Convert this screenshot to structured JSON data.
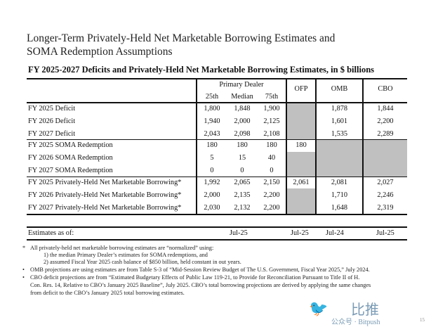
{
  "title_line1": "Longer-Term Privately-Held Net Marketable Borrowing Estimates and",
  "title_line2": "SOMA Redemption Assumptions",
  "table": {
    "title": "FY 2025-2027 Deficits and Privately-Held Net Marketable Borrowing Estimates, in $ billions",
    "group_header": "Primary Dealer",
    "columns": [
      "25th",
      "Median",
      "75th",
      "OFP",
      "OMB",
      "CBO"
    ],
    "rows": [
      {
        "label": "FY 2025 Deficit",
        "values": [
          "1,800",
          "1,848",
          "1,900",
          "",
          "1,878",
          "1,844"
        ]
      },
      {
        "label": "FY 2026 Deficit",
        "values": [
          "1,940",
          "2,000",
          "2,125",
          "",
          "1,601",
          "2,200"
        ]
      },
      {
        "label": "FY 2027 Deficit",
        "values": [
          "2,043",
          "2,098",
          "2,108",
          "",
          "1,535",
          "2,289"
        ]
      },
      {
        "label": "FY 2025 SOMA Redemption",
        "values": [
          "180",
          "180",
          "180",
          "180",
          "",
          ""
        ]
      },
      {
        "label": "FY 2026 SOMA Redemption",
        "values": [
          "5",
          "15",
          "40",
          "",
          "",
          ""
        ]
      },
      {
        "label": "FY 2027 SOMA Redemption",
        "values": [
          "0",
          "0",
          "0",
          "",
          "",
          ""
        ]
      },
      {
        "label": "FY 2025 Privately-Held Net Marketable Borrowing*",
        "values": [
          "1,992",
          "2,065",
          "2,150",
          "2,061",
          "2,081",
          "2,027"
        ]
      },
      {
        "label": "FY 2026 Privately-Held Net Marketable Borrowing*",
        "values": [
          "2,000",
          "2,135",
          "2,200",
          "",
          "1,710",
          "2,246"
        ]
      },
      {
        "label": "FY 2027 Privately-Held Net Marketable Borrowing*",
        "values": [
          "2,030",
          "2,132",
          "2,200",
          "",
          "1,648",
          "2,319"
        ]
      }
    ],
    "estimates_label": "Estimates as of:",
    "estimates": {
      "primary_dealer": "Jul-25",
      "ofp": "Jul-25",
      "omb": "Jul-24",
      "cbo": "Jul-25"
    },
    "shade_color": "#c0c0c0"
  },
  "notes": [
    {
      "bullet": "*",
      "text": "All privately-held net marketable borrowing estimates are “normalized” using:"
    },
    {
      "bullet": "",
      "text": "1) the median Primary Dealer’s estimates for SOMA redemptions, and"
    },
    {
      "bullet": "",
      "text": "2) assumed Fiscal Year 2025 cash balance of $850 billion, held constant in out years."
    },
    {
      "bullet": "•",
      "text": "OMB projections are using estimates are from Table S-3 of “Mid-Session Review Budget of The U.S. Government, Fiscal Year 2025,” July 2024."
    },
    {
      "bullet": "•",
      "text": "CBO deficit projections are from “Estimated Budgetary Effects of Public Law 119-21, to Provide for Reconciliation Pursuant to Title II of H."
    },
    {
      "bullet": "",
      "text": "Con. Res. 14, Relative to CBO’s January 2025 Baseline”, July 2025. CBO’s total borrowing projections are derived by applying the same changes"
    },
    {
      "bullet": "",
      "text": "from deficit to the CBO’s January 2025 total borrowing estimates."
    }
  ],
  "watermark": {
    "logo_text": "比推",
    "caption": "公众号 · Bitpush",
    "page_number": "15"
  }
}
